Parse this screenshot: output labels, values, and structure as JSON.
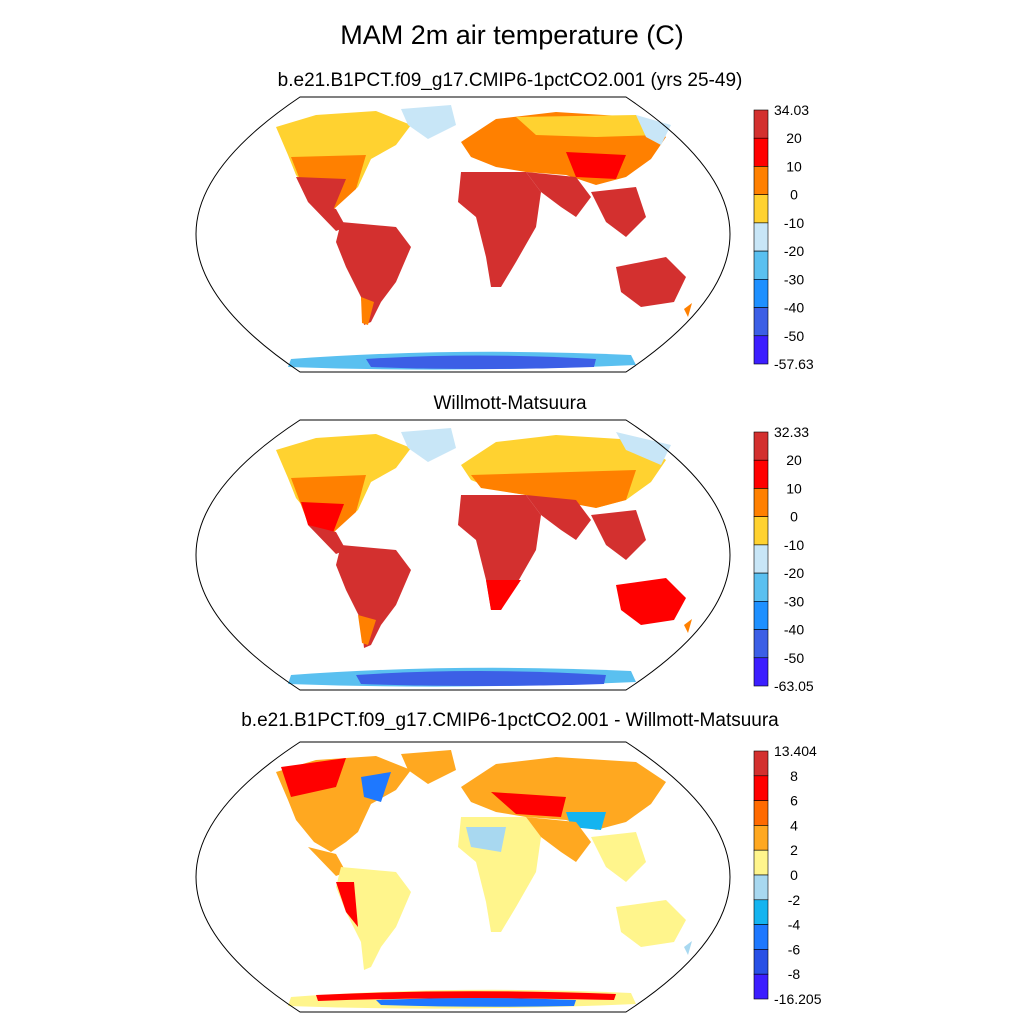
{
  "figure": {
    "title": "MAM 2m air temperature (C)"
  },
  "panels": [
    {
      "id": "model",
      "title": "b.e21.B1PCT.f09_g17.CMIP6-1pctCO2.001 (yrs 25-49)",
      "colorbar": {
        "labels": [
          "34.03",
          "20",
          "10",
          "0",
          "-10",
          "-20",
          "-30",
          "-40",
          "-50",
          "-57.63"
        ],
        "colors": [
          "#d3302f",
          "#ff0000",
          "#ff8000",
          "#ffd230",
          "#c8e6f7",
          "#5ac0f0",
          "#1e90ff",
          "#3c5fe6",
          "#3c1eff"
        ]
      }
    },
    {
      "id": "obs",
      "title": "Willmott-Matsuura",
      "colorbar": {
        "labels": [
          "32.33",
          "20",
          "10",
          "0",
          "-10",
          "-20",
          "-30",
          "-40",
          "-50",
          "-63.05"
        ],
        "colors": [
          "#d3302f",
          "#ff0000",
          "#ff8000",
          "#ffd230",
          "#c8e6f7",
          "#5ac0f0",
          "#1e90ff",
          "#3c5fe6",
          "#3c1eff"
        ]
      }
    },
    {
      "id": "diff",
      "title": "b.e21.B1PCT.f09_g17.CMIP6-1pctCO2.001 - Willmott-Matsuura",
      "colorbar": {
        "labels": [
          "13.404",
          "8",
          "6",
          "4",
          "2",
          "0",
          "-2",
          "-4",
          "-6",
          "-8",
          "-16.205"
        ],
        "colors": [
          "#d3302f",
          "#ff0000",
          "#ff6a00",
          "#ffa820",
          "#fff58c",
          "#a8d8f0",
          "#14b4f0",
          "#1e78ff",
          "#2850e6",
          "#3c1eff"
        ]
      }
    }
  ]
}
